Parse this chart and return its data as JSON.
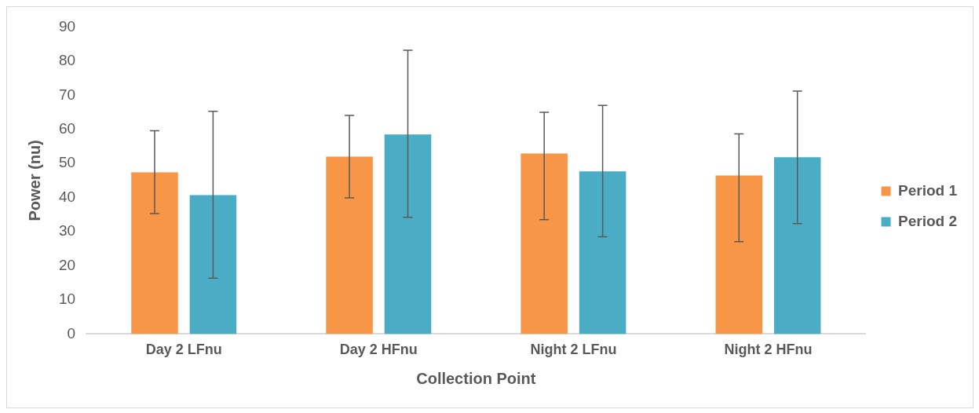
{
  "chart_data": {
    "type": "bar",
    "xlabel": "Collection Point",
    "ylabel": "Power (nu)",
    "categories": [
      "Day 2 LFnu",
      "Day 2 HFnu",
      "Night 2 LFnu",
      "Night 2 HFnu"
    ],
    "series": [
      {
        "name": "Period 1",
        "color": "#f79646",
        "values": [
          47.4,
          52.0,
          52.9,
          46.5
        ],
        "errors": [
          [
            35.3,
            59.6
          ],
          [
            39.9,
            64.1
          ],
          [
            33.5,
            65.0
          ],
          [
            27.1,
            58.7
          ]
        ]
      },
      {
        "name": "Period 2",
        "color": "#4bacc6",
        "values": [
          40.7,
          58.5,
          47.7,
          51.8
        ],
        "errors": [
          [
            16.4,
            65.3
          ],
          [
            34.2,
            83.2
          ],
          [
            28.5,
            67.0
          ],
          [
            32.4,
            71.2
          ]
        ]
      }
    ],
    "ylim": [
      0,
      90
    ],
    "yticks": [
      0,
      10,
      20,
      30,
      40,
      50,
      60,
      70,
      80,
      90
    ],
    "grid": false,
    "legend": "right"
  }
}
